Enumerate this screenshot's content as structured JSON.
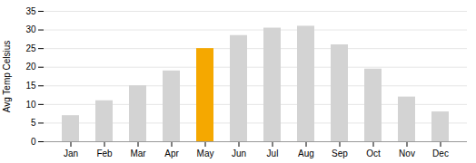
{
  "chart_data": {
    "type": "bar",
    "categories": [
      "Jan",
      "Feb",
      "Mar",
      "Apr",
      "May",
      "Jun",
      "Jul",
      "Aug",
      "Sep",
      "Oct",
      "Nov",
      "Dec"
    ],
    "values": [
      7,
      11,
      15,
      19,
      25,
      28.5,
      30.5,
      31,
      26,
      19.5,
      12,
      8
    ],
    "colors": [
      "#d3d3d3",
      "#d3d3d3",
      "#d3d3d3",
      "#d3d3d3",
      "#f5a800",
      "#d3d3d3",
      "#d3d3d3",
      "#d3d3d3",
      "#d3d3d3",
      "#d3d3d3",
      "#d3d3d3",
      "#d3d3d3"
    ],
    "ylabel": "Avg Temp Celsius",
    "ylim": [
      0,
      35
    ],
    "yticks": [
      0,
      5,
      10,
      15,
      20,
      25,
      30,
      35
    ],
    "grid": true
  }
}
